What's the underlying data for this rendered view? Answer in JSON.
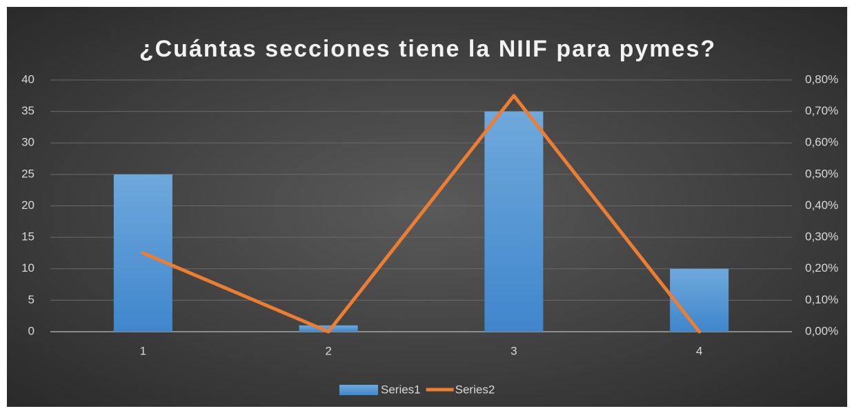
{
  "chart_data": {
    "type": "combo",
    "title": "¿Cuántas secciones tiene la NIIF para pymes?",
    "categories": [
      "1",
      "2",
      "3",
      "4"
    ],
    "series": [
      {
        "name": "Series1",
        "type": "bar",
        "color": "#5b9bd5",
        "values": [
          25,
          1,
          35,
          10
        ]
      },
      {
        "name": "Series2",
        "type": "line",
        "color": "#ed7d31",
        "axis": "y2",
        "values": [
          0.25,
          0,
          0.75,
          0
        ]
      }
    ],
    "ylim": [
      0,
      40
    ],
    "yticks": [
      0,
      5,
      10,
      15,
      20,
      25,
      30,
      35,
      40
    ],
    "y2lim": [
      0,
      0.8
    ],
    "y2ticks": [
      {
        "value": 0,
        "label": "0,00%"
      },
      {
        "value": 0.1,
        "label": "0,10%"
      },
      {
        "value": 0.2,
        "label": "0,20%"
      },
      {
        "value": 0.3,
        "label": "0,30%"
      },
      {
        "value": 0.4,
        "label": "0,40%"
      },
      {
        "value": 0.5,
        "label": "0,50%"
      },
      {
        "value": 0.6,
        "label": "0,60%"
      },
      {
        "value": 0.7,
        "label": "0,70%"
      },
      {
        "value": 0.8,
        "label": "0,80%"
      }
    ],
    "grid": true,
    "legend": "bottom"
  }
}
